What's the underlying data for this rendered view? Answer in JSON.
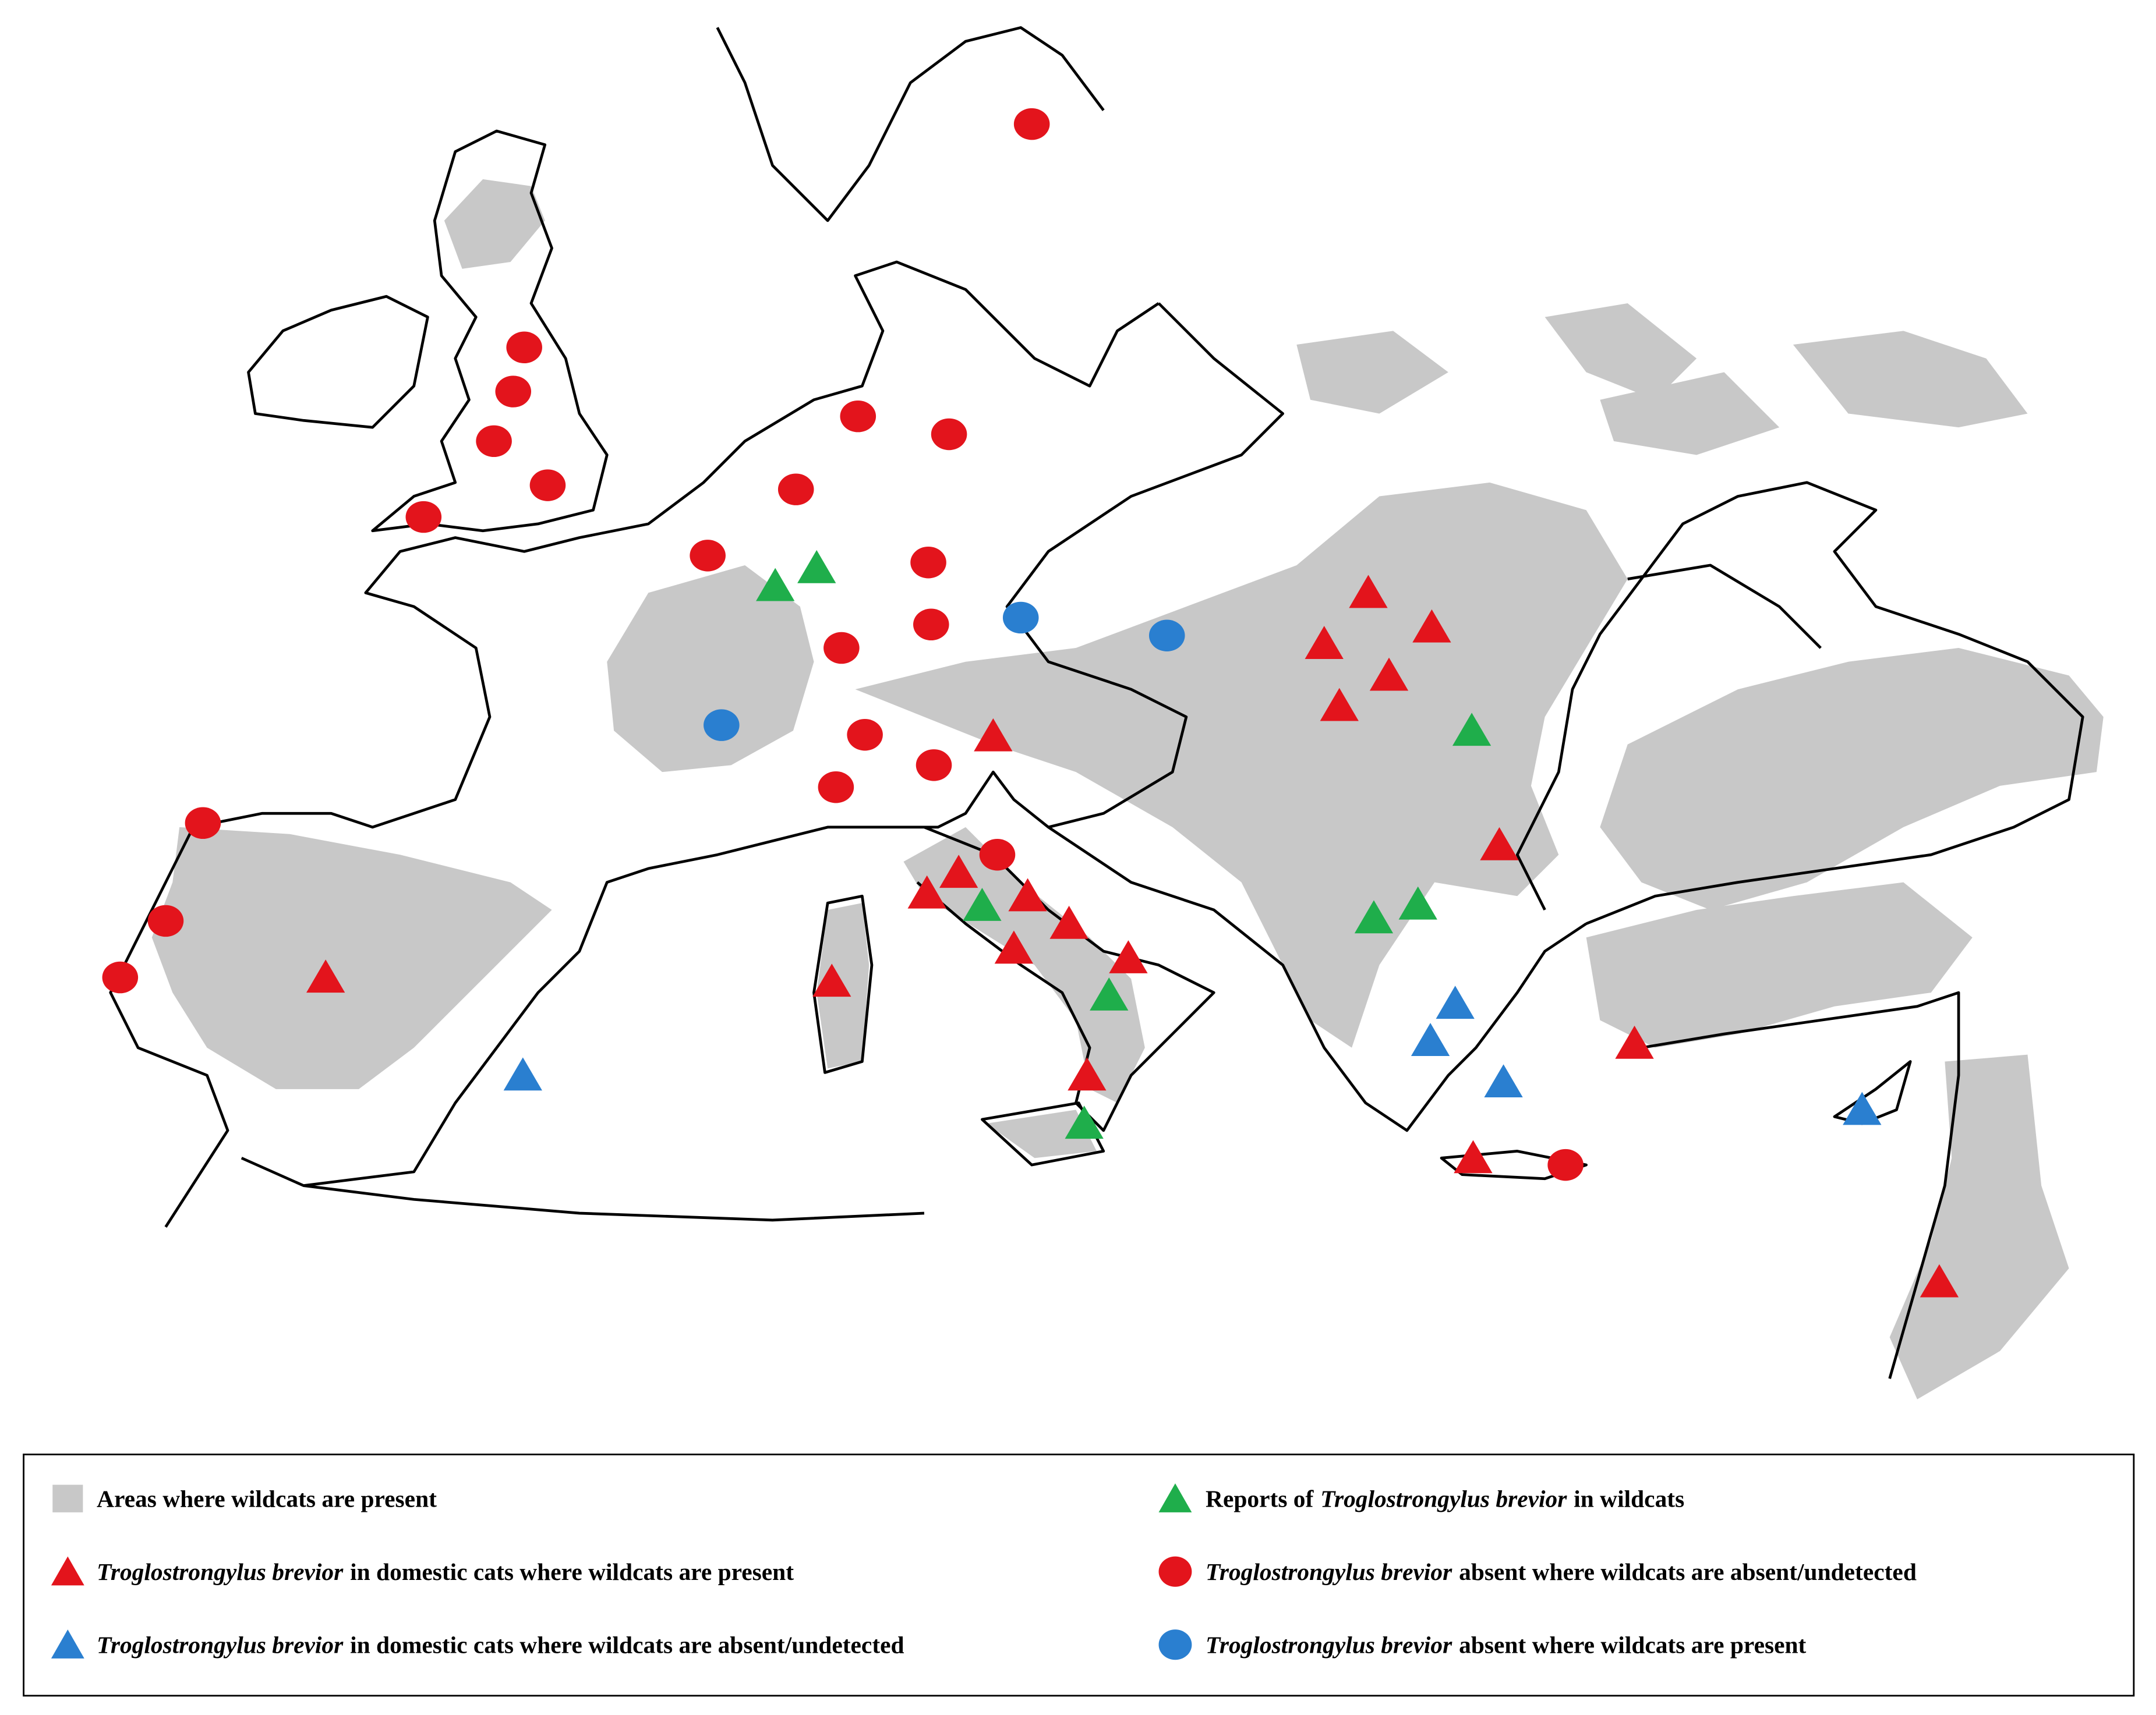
{
  "legend": {
    "items": [
      {
        "text": "Areas where wildcats are present"
      },
      {
        "prefix": "Reports of",
        "species": "Troglostrongylus brevior",
        "suffix": "in wildcats"
      },
      {
        "species": "Troglostrongylus brevior",
        "suffix": "in domestic cats where wildcats are present"
      },
      {
        "species": "Troglostrongylus brevior",
        "suffix": "absent where wildcats are absent/undetected"
      },
      {
        "species": "Troglostrongylus brevior",
        "suffix": "in domestic cats where wildcats are absent/undetected"
      },
      {
        "species": "Troglostrongylus brevior",
        "suffix": "absent where wildcats are present"
      }
    ]
  }
}
